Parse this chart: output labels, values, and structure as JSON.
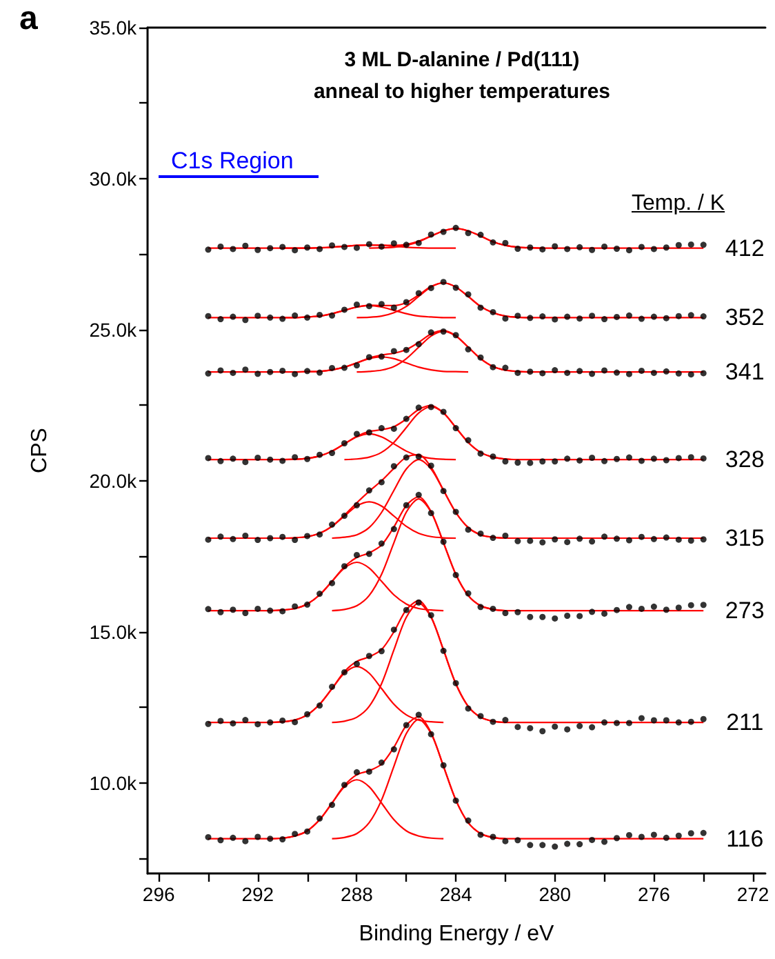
{
  "chart_data": {
    "type": "scatter",
    "title": "3 ML D-alanine / Pd(111)",
    "subtitle": "anneal to higher temperatures",
    "xlabel": "Binding Energy / eV",
    "ylabel": "CPS",
    "marker": "circle",
    "xlim": [
      296.45,
      271.5
    ],
    "ylim": [
      7000,
      35000
    ],
    "xticks": [
      296,
      {
        "value": 294,
        "label": null
      },
      292,
      {
        "value": 290,
        "label": null
      },
      288,
      {
        "value": 286,
        "label": null
      },
      284,
      {
        "value": 282,
        "label": null
      },
      280,
      {
        "value": 278,
        "label": null
      },
      276,
      {
        "value": 274,
        "label": null
      },
      272
    ],
    "yticks": [
      {
        "value": 7500,
        "label": null
      },
      {
        "value": 10000,
        "label": "10.0k"
      },
      {
        "value": 12500,
        "label": null
      },
      {
        "value": 15000,
        "label": "15.0k"
      },
      {
        "value": 17500,
        "label": null
      },
      {
        "value": 20000,
        "label": "20.0k"
      },
      {
        "value": 22500,
        "label": null
      },
      {
        "value": 25000,
        "label": "25.0k"
      },
      {
        "value": 27500,
        "label": null
      },
      {
        "value": 30000,
        "label": "30.0k"
      },
      {
        "value": 32500,
        "label": null
      },
      {
        "value": 35000,
        "label": "35.0k"
      }
    ],
    "annotations": [
      "a",
      "C1s Region",
      "Temp. / K",
      "412",
      "352",
      "341",
      "328",
      "315",
      "273",
      "211",
      "116"
    ],
    "x": [
      294,
      293.5,
      293,
      292.5,
      292,
      291.5,
      291,
      290.5,
      290,
      289.5,
      289,
      288.5,
      288,
      287.5,
      287,
      286.5,
      286,
      285.5,
      285,
      284.5,
      284,
      283.5,
      283,
      282.5,
      282,
      281.5,
      281,
      280.5,
      280,
      279.5,
      279,
      278.5,
      278,
      277.5,
      277,
      276.5,
      276,
      275.5,
      275,
      274.5,
      274
    ],
    "series": [
      {
        "type": "line",
        "marker": "none",
        "color": "#ff0000",
        "values": [
          8150,
          8150,
          8150,
          8150,
          8150,
          8150,
          8170,
          8240,
          8410,
          8780,
          9330,
          9910,
          10270,
          10400,
          10620,
          11180,
          11900,
          12190,
          11660,
          10550,
          9430,
          8680,
          8320,
          8190,
          8150,
          8150,
          8150,
          8150,
          8150,
          8150,
          8150,
          8150,
          8150,
          8150,
          8150,
          8150,
          8150,
          8150,
          8150,
          8150,
          8150
        ]
      },
      {
        "type": "line",
        "marker": "none",
        "color": "#ff0000",
        "x": [
          289,
          288.5,
          288,
          287.5,
          287,
          286.5,
          286,
          285.5,
          285,
          284.5,
          284,
          283.5,
          283,
          282.5,
          282
        ],
        "values": [
          8150,
          8190,
          8320,
          8680,
          9430,
          10550,
          11630,
          12100,
          11630,
          10550,
          9430,
          8680,
          8320,
          8190,
          8150
        ]
      },
      {
        "type": "line",
        "marker": "none",
        "color": "#ff0000",
        "x": [
          291.5,
          291,
          290.5,
          290,
          289.5,
          289,
          288.5,
          288,
          287.5,
          287,
          286.5,
          286,
          285.5,
          285,
          284.5
        ],
        "values": [
          8150,
          8170,
          8240,
          8410,
          8780,
          9330,
          9870,
          10100,
          9870,
          9330,
          8780,
          8410,
          8240,
          8170,
          8150
        ]
      },
      {
        "color": "#000000",
        "values": [
          8200,
          8100,
          8180,
          8070,
          8210,
          8150,
          8130,
          8310,
          8390,
          8820,
          9270,
          9930,
          10350,
          10370,
          10670,
          11110,
          11910,
          12250,
          11610,
          10580,
          9410,
          8750,
          8280,
          8210,
          8070,
          8100,
          7940,
          7940,
          7890,
          7980,
          7970,
          8110,
          8050,
          8170,
          8270,
          8210,
          8280,
          8180,
          8250,
          8330,
          8340
        ]
      },
      {
        "type": "line",
        "marker": "none",
        "color": "#ff0000",
        "values": [
          12000,
          12000,
          12000,
          12000,
          12000,
          12000,
          12020,
          12080,
          12250,
          12600,
          13120,
          13680,
          14020,
          14170,
          14410,
          15000,
          15730,
          16030,
          15500,
          14400,
          13280,
          12530,
          12170,
          12040,
          12000,
          12000,
          12000,
          12000,
          12000,
          12000,
          12000,
          12000,
          12000,
          12000,
          12000,
          12000,
          12000,
          12000,
          12000,
          12000,
          12000
        ]
      },
      {
        "type": "line",
        "marker": "none",
        "color": "#ff0000",
        "x": [
          289,
          288.5,
          288,
          287.5,
          287,
          286.5,
          286,
          285.5,
          285,
          284.5,
          284,
          283.5,
          283,
          282.5,
          282
        ],
        "values": [
          12000,
          12040,
          12170,
          12530,
          13280,
          14400,
          15480,
          15950,
          15480,
          14400,
          13280,
          12530,
          12170,
          12040,
          12000
        ]
      },
      {
        "type": "line",
        "marker": "none",
        "color": "#ff0000",
        "x": [
          291.5,
          291,
          290.5,
          290,
          289.5,
          289,
          288.5,
          288,
          287.5,
          287,
          286.5,
          286,
          285.5,
          285,
          284.5
        ],
        "values": [
          12000,
          12020,
          12080,
          12250,
          12600,
          13120,
          13630,
          13850,
          13630,
          13120,
          12600,
          12250,
          12080,
          12020,
          12000
        ]
      },
      {
        "color": "#000000",
        "values": [
          11950,
          12050,
          11970,
          12080,
          11940,
          12000,
          12060,
          12010,
          12270,
          12560,
          13180,
          13660,
          13940,
          14200,
          14360,
          15070,
          15720,
          15970,
          15550,
          14370,
          13300,
          12460,
          12210,
          12020,
          12080,
          11850,
          11810,
          11710,
          11860,
          11770,
          11880,
          11840,
          12000,
          11980,
          11980,
          12140,
          12070,
          12070,
          12000,
          12020,
          12110
        ]
      },
      {
        "type": "line",
        "marker": "none",
        "color": "#ff0000",
        "values": [
          15700,
          15700,
          15700,
          15700,
          15700,
          15700,
          15720,
          15770,
          15920,
          16220,
          16670,
          17150,
          17460,
          17610,
          17870,
          18470,
          19180,
          19470,
          18980,
          17950,
          16900,
          16200,
          15860,
          15740,
          15700,
          15700,
          15700,
          15700,
          15700,
          15700,
          15700,
          15700,
          15700,
          15700,
          15700,
          15700,
          15700,
          15700,
          15700,
          15700,
          15700
        ]
      },
      {
        "type": "line",
        "marker": "none",
        "color": "#ff0000",
        "x": [
          289,
          288.5,
          288,
          287.5,
          287,
          286.5,
          286,
          285.5,
          285,
          284.5,
          284,
          283.5,
          283,
          282.5,
          282
        ],
        "values": [
          15700,
          15740,
          15860,
          16200,
          16900,
          17950,
          18960,
          19400,
          18960,
          17950,
          16900,
          16200,
          15860,
          15740,
          15700
        ]
      },
      {
        "type": "line",
        "marker": "none",
        "color": "#ff0000",
        "x": [
          291.5,
          291,
          290.5,
          290,
          289.5,
          289,
          288.5,
          288,
          287.5,
          287,
          286.5,
          286,
          285.5,
          285,
          284.5
        ],
        "values": [
          15700,
          15720,
          15770,
          15920,
          16220,
          16670,
          17110,
          17300,
          17110,
          16670,
          16220,
          15920,
          15770,
          15720,
          15700
        ]
      },
      {
        "color": "#000000",
        "values": [
          15750,
          15650,
          15730,
          15620,
          15760,
          15700,
          15680,
          15840,
          15900,
          16260,
          16610,
          17170,
          17540,
          17580,
          17920,
          18400,
          19190,
          19530,
          18930,
          17980,
          16880,
          16270,
          15820,
          15760,
          15620,
          15650,
          15490,
          15490,
          15440,
          15530,
          15520,
          15660,
          15600,
          15720,
          15820,
          15760,
          15830,
          15730,
          15800,
          15880,
          15890
        ]
      },
      {
        "type": "line",
        "marker": "none",
        "color": "#ff0000",
        "values": [
          18100,
          18100,
          18100,
          18100,
          18100,
          18100,
          18100,
          18110,
          18150,
          18260,
          18490,
          18860,
          19270,
          19650,
          20000,
          20410,
          20780,
          20860,
          20450,
          19690,
          18950,
          18450,
          18210,
          18130,
          18100,
          18100,
          18100,
          18100,
          18100,
          18100,
          18100,
          18100,
          18100,
          18100,
          18100,
          18100,
          18100,
          18100,
          18100,
          18100,
          18100
        ]
      },
      {
        "type": "line",
        "marker": "none",
        "color": "#ff0000",
        "x": [
          289,
          288.5,
          288,
          287.5,
          287,
          286.5,
          286,
          285.5,
          285,
          284.5,
          284,
          283.5,
          283,
          282.5,
          282
        ],
        "values": [
          18100,
          18130,
          18210,
          18450,
          18950,
          19680,
          20390,
          20700,
          20390,
          19680,
          18950,
          18450,
          18210,
          18130,
          18100
        ]
      },
      {
        "type": "line",
        "marker": "none",
        "color": "#ff0000",
        "x": [
          291,
          290.5,
          290,
          289.5,
          289,
          288.5,
          288,
          287.5,
          287,
          286.5,
          286,
          285.5,
          285,
          284.5,
          284
        ],
        "values": [
          18100,
          18110,
          18150,
          18260,
          18490,
          18830,
          19160,
          19300,
          19160,
          18830,
          18490,
          18260,
          18150,
          18110,
          18100
        ]
      },
      {
        "color": "#000000",
        "values": [
          18050,
          18150,
          18070,
          18180,
          18040,
          18100,
          18140,
          18040,
          18170,
          18220,
          18550,
          18840,
          19190,
          19680,
          19950,
          20480,
          20770,
          20800,
          20500,
          19660,
          18970,
          18380,
          18250,
          18110,
          18180,
          18000,
          18010,
          17960,
          18060,
          17970,
          18080,
          17990,
          18150,
          18080,
          18030,
          18140,
          18070,
          18120,
          18050,
          18020,
          18060
        ]
      },
      {
        "type": "line",
        "marker": "none",
        "color": "#ff0000",
        "values": [
          20700,
          20700,
          20700,
          20700,
          20700,
          20700,
          20700,
          20710,
          20740,
          20820,
          20980,
          21220,
          21470,
          21630,
          21690,
          21790,
          22040,
          22360,
          22490,
          22250,
          21760,
          21270,
          20940,
          20780,
          20720,
          20700,
          20700,
          20700,
          20700,
          20700,
          20700,
          20700,
          20700,
          20700,
          20700,
          20700,
          20700,
          20700,
          20700,
          20700,
          20700
        ]
      },
      {
        "type": "line",
        "marker": "none",
        "color": "#ff0000",
        "x": [
          288.5,
          288,
          287.5,
          287,
          286.5,
          286,
          285.5,
          285,
          284.5,
          284,
          283.5,
          283,
          282.5,
          282,
          281.5
        ],
        "values": [
          20700,
          20720,
          20780,
          20940,
          21270,
          21760,
          22240,
          22450,
          22240,
          21760,
          21270,
          20940,
          20780,
          20720,
          20700
        ]
      },
      {
        "type": "line",
        "marker": "none",
        "color": "#ff0000",
        "x": [
          291,
          290.5,
          290,
          289.5,
          289,
          288.5,
          288,
          287.5,
          287,
          286.5,
          286,
          285.5,
          285,
          284.5,
          284
        ],
        "values": [
          20700,
          20710,
          20740,
          20820,
          20980,
          21220,
          21450,
          21550,
          21450,
          21220,
          20980,
          20820,
          20740,
          20710,
          20700
        ]
      },
      {
        "color": "#000000",
        "values": [
          20750,
          20650,
          20730,
          20620,
          20760,
          20700,
          20660,
          20780,
          20720,
          20860,
          20920,
          21240,
          21550,
          21600,
          21740,
          21720,
          22050,
          22420,
          22440,
          22280,
          21740,
          21340,
          20900,
          20800,
          20640,
          20600,
          20590,
          20640,
          20640,
          20730,
          20670,
          20760,
          20650,
          20720,
          20770,
          20660,
          20730,
          20680,
          20750,
          20780,
          20740
        ]
      },
      {
        "type": "line",
        "marker": "none",
        "color": "#ff0000",
        "values": [
          23600,
          23600,
          23600,
          23600,
          23600,
          23600,
          23600,
          23600,
          23610,
          23620,
          23670,
          23760,
          23900,
          24060,
          24160,
          24220,
          24340,
          24580,
          24860,
          24970,
          24800,
          24420,
          24040,
          23780,
          23660,
          23620,
          23600,
          23600,
          23600,
          23600,
          23600,
          23600,
          23600,
          23600,
          23600,
          23600,
          23600,
          23600,
          23600,
          23600,
          23600
        ]
      },
      {
        "type": "line",
        "marker": "none",
        "color": "#ff0000",
        "x": [
          288,
          287.5,
          287,
          286.5,
          286,
          285.5,
          285,
          284.5,
          284,
          283.5,
          283,
          282.5,
          282,
          281.5,
          281
        ],
        "values": [
          23600,
          23620,
          23660,
          23780,
          24040,
          24420,
          24790,
          24950,
          24790,
          24420,
          24040,
          23780,
          23660,
          23620,
          23600
        ]
      },
      {
        "type": "line",
        "marker": "none",
        "color": "#ff0000",
        "x": [
          290.5,
          290,
          289.5,
          289,
          288.5,
          288,
          287.5,
          287,
          286.5,
          286,
          285.5,
          285,
          284.5,
          284,
          283.5
        ],
        "values": [
          23600,
          23610,
          23620,
          23670,
          23760,
          23900,
          24040,
          24100,
          24040,
          23900,
          23760,
          23670,
          23620,
          23610,
          23600
        ]
      },
      {
        "color": "#000000",
        "values": [
          23550,
          23650,
          23570,
          23680,
          23540,
          23600,
          23640,
          23530,
          23630,
          23580,
          23730,
          23740,
          23820,
          24090,
          24110,
          24290,
          24330,
          24520,
          24910,
          24940,
          24820,
          24350,
          24080,
          23760,
          23740,
          23570,
          23610,
          23560,
          23660,
          23570,
          23630,
          23540,
          23650,
          23580,
          23530,
          23640,
          23570,
          23620,
          23550,
          23520,
          23560
        ]
      },
      {
        "type": "line",
        "marker": "none",
        "color": "#ff0000",
        "values": [
          25400,
          25400,
          25400,
          25400,
          25400,
          25400,
          25400,
          25400,
          25420,
          25450,
          25530,
          25640,
          25750,
          25810,
          25800,
          25800,
          25900,
          26150,
          26430,
          26550,
          26410,
          26100,
          25770,
          25560,
          25450,
          25410,
          25400,
          25400,
          25400,
          25400,
          25400,
          25400,
          25400,
          25400,
          25400,
          25400,
          25400,
          25400,
          25400,
          25400,
          25400
        ]
      },
      {
        "type": "line",
        "marker": "none",
        "color": "#ff0000",
        "x": [
          288,
          287.5,
          287,
          286.5,
          286,
          285.5,
          285,
          284.5,
          284,
          283.5,
          283,
          282.5,
          282,
          281.5,
          281
        ],
        "values": [
          25400,
          25410,
          25450,
          25560,
          25770,
          26100,
          26410,
          26550,
          26410,
          26100,
          25770,
          25560,
          25450,
          25410,
          25400
        ]
      },
      {
        "type": "line",
        "marker": "none",
        "color": "#ff0000",
        "x": [
          291,
          290.5,
          290,
          289.5,
          289,
          288.5,
          288,
          287.5,
          287,
          286.5,
          286,
          285.5,
          285,
          284.5,
          284
        ],
        "values": [
          25400,
          25400,
          25420,
          25450,
          25530,
          25640,
          25750,
          25800,
          25750,
          25640,
          25530,
          25450,
          25420,
          25400,
          25400
        ]
      },
      {
        "color": "#000000",
        "values": [
          25450,
          25350,
          25430,
          25320,
          25460,
          25400,
          25360,
          25470,
          25400,
          25490,
          25470,
          25660,
          25830,
          25780,
          25850,
          25730,
          25910,
          26210,
          26380,
          26580,
          26390,
          26170,
          25730,
          25580,
          25370,
          25460,
          25390,
          25440,
          25340,
          25430,
          25370,
          25460,
          25350,
          25420,
          25470,
          25360,
          25430,
          25380,
          25450,
          25480,
          25440
        ]
      },
      {
        "type": "line",
        "marker": "none",
        "color": "#ff0000",
        "values": [
          27700,
          27700,
          27700,
          27700,
          27700,
          27700,
          27700,
          27700,
          27700,
          27710,
          27730,
          27760,
          27790,
          27800,
          27800,
          27790,
          27820,
          27930,
          28100,
          28270,
          28350,
          28270,
          28100,
          27910,
          27790,
          27730,
          27710,
          27700,
          27700,
          27700,
          27700,
          27700,
          27700,
          27700,
          27700,
          27700,
          27700,
          27700,
          27700,
          27700,
          27700
        ]
      },
      {
        "type": "line",
        "marker": "none",
        "color": "#ff0000",
        "x": [
          287.5,
          287,
          286.5,
          286,
          285.5,
          285,
          284.5,
          284,
          283.5,
          283,
          282.5,
          282,
          281.5,
          281,
          280.5
        ],
        "values": [
          27700,
          27710,
          27730,
          27790,
          27910,
          28100,
          28270,
          28350,
          28270,
          28100,
          27910,
          27790,
          27730,
          27710,
          27700
        ]
      },
      {
        "type": "line",
        "marker": "none",
        "color": "#ff0000",
        "x": [
          291,
          290.5,
          290,
          289.5,
          289,
          288.5,
          288,
          287.5,
          287,
          286.5,
          286,
          285.5,
          285,
          284.5,
          284
        ],
        "values": [
          27700,
          27700,
          27700,
          27710,
          27730,
          27760,
          27790,
          27800,
          27790,
          27760,
          27730,
          27710,
          27700,
          27700,
          27700
        ]
      },
      {
        "color": "#000000",
        "values": [
          27650,
          27750,
          27670,
          27780,
          27640,
          27700,
          27740,
          27630,
          27720,
          27670,
          27790,
          27740,
          27710,
          27830,
          27750,
          27860,
          27810,
          27870,
          28150,
          28240,
          28370,
          28200,
          28140,
          27890,
          27870,
          27680,
          27720,
          27660,
          27760,
          27670,
          27730,
          27640,
          27750,
          27680,
          27630,
          27740,
          27670,
          27720,
          27800,
          27820,
          27810
        ]
      }
    ]
  }
}
